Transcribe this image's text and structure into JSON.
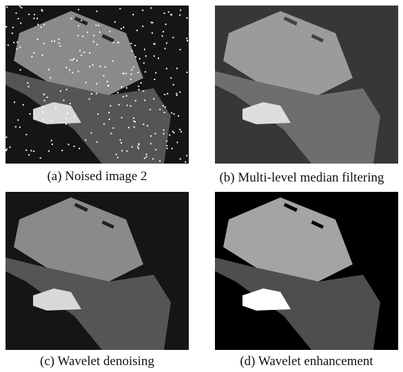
{
  "panels": [
    {
      "caption": "(a) Noised image 2"
    },
    {
      "caption": "(b) Multi-level median filtering"
    },
    {
      "caption": "(c) Wavelet denoising"
    },
    {
      "caption": "(d) Wavelet enhancement"
    }
  ]
}
